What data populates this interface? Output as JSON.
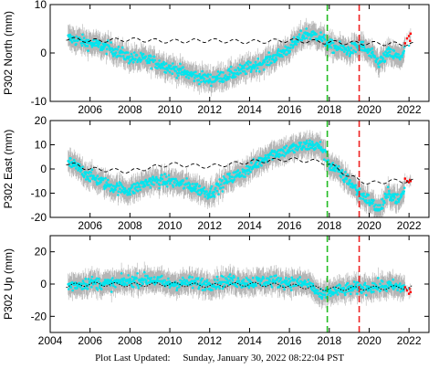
{
  "footer": {
    "label": "Plot Last Updated:",
    "timestamp": "Sunday, January 30, 2022 08:22:04 PST"
  },
  "chart_data": [
    {
      "type": "scatter",
      "ylabel": "P302 North (mm)",
      "xlim": [
        2004,
        2023
      ],
      "ylim": [
        -10,
        10
      ],
      "yticks": [
        -10,
        0,
        10
      ],
      "x_trend": [
        2005.0,
        2006.0,
        2007.0,
        2008.0,
        2009.0,
        2010.0,
        2011.0,
        2012.0,
        2013.0,
        2014.0,
        2015.0,
        2016.0,
        2016.8,
        2017.5,
        2018.0,
        2019.0,
        2019.6,
        2020.5,
        2021.0,
        2021.5,
        2022.0
      ],
      "y_trend": [
        3.0,
        2.0,
        1.0,
        -1.0,
        -1.5,
        -3.0,
        -4.5,
        -5.5,
        -4.5,
        -3.0,
        -1.5,
        1.0,
        4.0,
        3.5,
        1.5,
        0.5,
        1.5,
        -2.0,
        0.0,
        -1.0,
        1.5
      ],
      "series": [
        {
          "name": "",
          "color": "#00e5ee",
          "values": [
            [
              2005.0,
              3.2
            ],
            [
              2006.0,
              2.0
            ],
            [
              2007.0,
              1.0
            ],
            [
              2008.0,
              -0.8
            ],
            [
              2009.0,
              -1.6
            ],
            [
              2010.0,
              -3.2
            ],
            [
              2011.0,
              -4.6
            ],
            [
              2012.0,
              -5.4
            ],
            [
              2013.0,
              -4.4
            ],
            [
              2014.0,
              -3.0
            ],
            [
              2015.0,
              -1.4
            ],
            [
              2016.0,
              1.0
            ],
            [
              2016.8,
              4.0
            ],
            [
              2017.5,
              3.4
            ],
            [
              2018.0,
              1.6
            ],
            [
              2019.0,
              0.6
            ],
            [
              2019.6,
              1.4
            ],
            [
              2020.5,
              -2.0
            ],
            [
              2021.0,
              0.2
            ],
            [
              2021.5,
              -1.0
            ],
            [
              2022.0,
              1.5
            ]
          ]
        },
        {
          "name": "",
          "color": "#ff0000",
          "values": [
            [
              2021.8,
              2.0
            ],
            [
              2021.9,
              3.0
            ],
            [
              2022.0,
              3.5
            ],
            [
              2022.05,
              2.5
            ],
            [
              2022.08,
              4.0
            ]
          ]
        }
      ],
      "model": {
        "x": [
          2004.8,
          2006.0,
          2008.0,
          2010.0,
          2012.0,
          2014.0,
          2016.0,
          2018.0,
          2020.0,
          2022.2
        ],
        "y": [
          3.0,
          2.5,
          2.8,
          2.4,
          2.6,
          2.3,
          2.6,
          2.2,
          2.0,
          1.8
        ]
      },
      "vlines": [
        {
          "x": 2017.9,
          "color": "#22bb22"
        },
        {
          "x": 2019.5,
          "color": "#ee2222"
        }
      ]
    },
    {
      "type": "scatter",
      "ylabel": "P302 East (mm)",
      "xlim": [
        2004,
        2023
      ],
      "ylim": [
        -20,
        20
      ],
      "yticks": [
        -20,
        -10,
        0,
        10,
        20
      ],
      "x_trend": [
        2005.0,
        2006.0,
        2007.0,
        2008.0,
        2009.0,
        2010.0,
        2011.0,
        2012.0,
        2013.0,
        2014.0,
        2015.0,
        2016.0,
        2017.0,
        2017.6,
        2018.0,
        2019.0,
        2019.5,
        2020.0,
        2020.5,
        2021.0,
        2021.5,
        2022.0
      ],
      "y_trend": [
        2.5,
        -3.0,
        -7.0,
        -9.0,
        -5.0,
        -5.0,
        -7.0,
        -10.0,
        -4.0,
        0.0,
        6.0,
        8.0,
        10.0,
        9.0,
        2.0,
        -5.0,
        -10.0,
        -13.0,
        -17.0,
        -10.0,
        -13.0,
        -5.0
      ],
      "series": [
        {
          "name": "",
          "color": "#00e5ee",
          "values": [
            [
              2005.0,
              2.5
            ],
            [
              2006.0,
              -3.0
            ],
            [
              2007.0,
              -7.0
            ],
            [
              2008.0,
              -9.0
            ],
            [
              2009.0,
              -5.0
            ],
            [
              2010.0,
              -5.0
            ],
            [
              2011.0,
              -7.0
            ],
            [
              2012.0,
              -10.0
            ],
            [
              2013.0,
              -4.0
            ],
            [
              2014.0,
              0.0
            ],
            [
              2015.0,
              6.0
            ],
            [
              2016.0,
              8.0
            ],
            [
              2017.0,
              10.0
            ],
            [
              2017.6,
              9.0
            ],
            [
              2018.0,
              2.0
            ],
            [
              2019.0,
              -5.0
            ],
            [
              2019.5,
              -10.0
            ],
            [
              2020.0,
              -13.0
            ],
            [
              2020.5,
              -17.0
            ],
            [
              2021.0,
              -10.0
            ],
            [
              2021.5,
              -13.0
            ],
            [
              2022.0,
              -5.0
            ]
          ]
        },
        {
          "name": "",
          "color": "#ff0000",
          "values": [
            [
              2021.8,
              -4.0
            ],
            [
              2021.9,
              -5.0
            ],
            [
              2022.0,
              -5.5
            ],
            [
              2022.05,
              -4.5
            ],
            [
              2022.08,
              -5.0
            ]
          ]
        }
      ],
      "model": {
        "x": [
          2004.8,
          2006.0,
          2008.0,
          2010.0,
          2012.0,
          2014.0,
          2016.0,
          2017.5,
          2018.0,
          2019.0,
          2020.0,
          2021.0,
          2022.2
        ],
        "y": [
          2.5,
          0.0,
          -1.0,
          2.0,
          1.0,
          3.0,
          4.0,
          3.0,
          2.0,
          -3.0,
          -6.0,
          -5.0,
          -5.0
        ]
      },
      "vlines": [
        {
          "x": 2017.9,
          "color": "#22bb22"
        },
        {
          "x": 2019.5,
          "color": "#ee2222"
        }
      ]
    },
    {
      "type": "scatter",
      "ylabel": "P302 Up (mm)",
      "xlim": [
        2004,
        2023
      ],
      "ylim": [
        -30,
        30
      ],
      "yticks": [
        -20,
        0,
        20
      ],
      "xticks": [
        2004,
        2006,
        2008,
        2010,
        2012,
        2014,
        2016,
        2018,
        2020,
        2022
      ],
      "x_trend": [
        2005.0,
        2006.0,
        2007.0,
        2008.0,
        2009.0,
        2010.0,
        2011.0,
        2012.0,
        2013.0,
        2014.0,
        2015.0,
        2016.0,
        2017.0,
        2017.6,
        2018.0,
        2019.0,
        2020.0,
        2021.0,
        2022.0
      ],
      "y_trend": [
        -1.0,
        1.0,
        0.0,
        2.0,
        3.0,
        0.0,
        1.0,
        0.0,
        2.0,
        1.0,
        2.0,
        1.0,
        0.0,
        -8.0,
        -5.0,
        -3.0,
        -2.0,
        -1.0,
        -3.0
      ],
      "series": [
        {
          "name": "",
          "color": "#00e5ee",
          "values": [
            [
              2005.0,
              -1.0
            ],
            [
              2006.0,
              1.0
            ],
            [
              2007.0,
              0.0
            ],
            [
              2008.0,
              2.0
            ],
            [
              2009.0,
              3.0
            ],
            [
              2010.0,
              0.0
            ],
            [
              2011.0,
              1.0
            ],
            [
              2012.0,
              0.0
            ],
            [
              2013.0,
              2.0
            ],
            [
              2014.0,
              1.0
            ],
            [
              2015.0,
              2.0
            ],
            [
              2016.0,
              1.0
            ],
            [
              2017.0,
              0.0
            ],
            [
              2017.6,
              -8.0
            ],
            [
              2018.0,
              -5.0
            ],
            [
              2019.0,
              -3.0
            ],
            [
              2020.0,
              -2.0
            ],
            [
              2021.0,
              -1.0
            ],
            [
              2022.0,
              -3.0
            ]
          ]
        },
        {
          "name": "",
          "color": "#ff0000",
          "values": [
            [
              2021.8,
              -2.0
            ],
            [
              2021.9,
              -4.0
            ],
            [
              2022.0,
              -6.0
            ],
            [
              2022.05,
              -3.0
            ],
            [
              2022.08,
              -5.0
            ]
          ]
        }
      ],
      "model": {
        "x": [
          2004.8,
          2006.0,
          2008.0,
          2010.0,
          2012.0,
          2014.0,
          2016.0,
          2018.0,
          2020.0,
          2022.2
        ],
        "y": [
          -1.0,
          0.0,
          -0.5,
          0.0,
          -1.0,
          0.0,
          -1.0,
          -3.0,
          -2.5,
          -2.0
        ]
      },
      "vlines": [
        {
          "x": 2017.9,
          "color": "#22bb22"
        },
        {
          "x": 2019.5,
          "color": "#ee2222"
        }
      ]
    }
  ]
}
